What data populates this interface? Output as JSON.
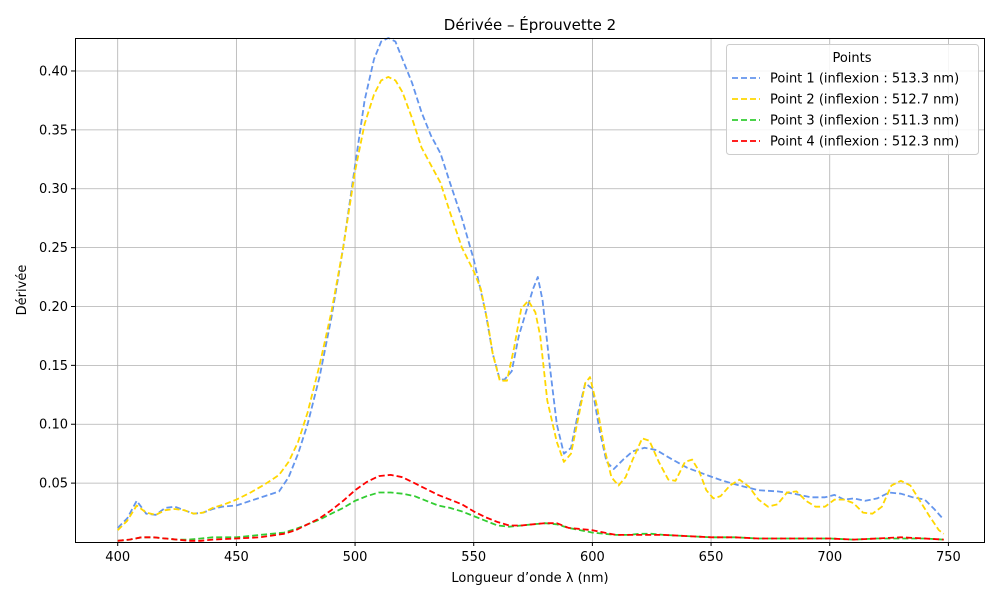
{
  "chart_data": {
    "type": "line",
    "title": "Dérivée – Éprouvette 2",
    "xlabel": "Longueur d’onde λ (nm)",
    "ylabel": "Dérivée",
    "xlim": [
      382,
      765
    ],
    "ylim": [
      0.0,
      0.428
    ],
    "x_ticks": [
      400,
      450,
      500,
      550,
      600,
      650,
      700,
      750
    ],
    "y_ticks": [
      0.05,
      0.1,
      0.15,
      0.2,
      0.25,
      0.3,
      0.35,
      0.4
    ],
    "y_tick_labels": [
      "0.05",
      "0.10",
      "0.15",
      "0.20",
      "0.25",
      "0.30",
      "0.35",
      "0.40"
    ],
    "grid": true,
    "legend": {
      "title": "Points",
      "placement": "top-right",
      "entries": [
        "Point 1 (inflexion : 513.3 nm)",
        "Point 2 (inflexion : 512.7 nm)",
        "Point 3 (inflexion : 511.3 nm)",
        "Point 4 (inflexion : 512.3 nm)"
      ]
    },
    "series": [
      {
        "name": "Point 1 (inflexion : 513.3 nm)",
        "color": "#6495ED",
        "points": [
          [
            400,
            0.012
          ],
          [
            404,
            0.02
          ],
          [
            408,
            0.035
          ],
          [
            412,
            0.024
          ],
          [
            416,
            0.023
          ],
          [
            420,
            0.029
          ],
          [
            424,
            0.03
          ],
          [
            428,
            0.027
          ],
          [
            432,
            0.024
          ],
          [
            436,
            0.025
          ],
          [
            440,
            0.028
          ],
          [
            444,
            0.03
          ],
          [
            450,
            0.031
          ],
          [
            456,
            0.035
          ],
          [
            462,
            0.039
          ],
          [
            468,
            0.043
          ],
          [
            472,
            0.055
          ],
          [
            476,
            0.075
          ],
          [
            480,
            0.1
          ],
          [
            485,
            0.14
          ],
          [
            490,
            0.19
          ],
          [
            495,
            0.25
          ],
          [
            500,
            0.32
          ],
          [
            504,
            0.375
          ],
          [
            508,
            0.41
          ],
          [
            511,
            0.425
          ],
          [
            514,
            0.428
          ],
          [
            517,
            0.425
          ],
          [
            520,
            0.41
          ],
          [
            524,
            0.39
          ],
          [
            528,
            0.365
          ],
          [
            532,
            0.345
          ],
          [
            536,
            0.33
          ],
          [
            540,
            0.305
          ],
          [
            545,
            0.275
          ],
          [
            550,
            0.24
          ],
          [
            555,
            0.195
          ],
          [
            558,
            0.16
          ],
          [
            561,
            0.138
          ],
          [
            563,
            0.138
          ],
          [
            566,
            0.145
          ],
          [
            569,
            0.175
          ],
          [
            572,
            0.195
          ],
          [
            575,
            0.215
          ],
          [
            577,
            0.225
          ],
          [
            579,
            0.205
          ],
          [
            582,
            0.15
          ],
          [
            585,
            0.1
          ],
          [
            588,
            0.075
          ],
          [
            591,
            0.08
          ],
          [
            594,
            0.11
          ],
          [
            597,
            0.135
          ],
          [
            600,
            0.13
          ],
          [
            603,
            0.095
          ],
          [
            606,
            0.068
          ],
          [
            609,
            0.062
          ],
          [
            613,
            0.07
          ],
          [
            617,
            0.077
          ],
          [
            622,
            0.08
          ],
          [
            627,
            0.078
          ],
          [
            632,
            0.072
          ],
          [
            640,
            0.063
          ],
          [
            648,
            0.057
          ],
          [
            655,
            0.052
          ],
          [
            662,
            0.048
          ],
          [
            670,
            0.044
          ],
          [
            678,
            0.043
          ],
          [
            685,
            0.041
          ],
          [
            692,
            0.038
          ],
          [
            698,
            0.038
          ],
          [
            702,
            0.04
          ],
          [
            706,
            0.036
          ],
          [
            710,
            0.037
          ],
          [
            715,
            0.035
          ],
          [
            720,
            0.037
          ],
          [
            725,
            0.042
          ],
          [
            730,
            0.041
          ],
          [
            735,
            0.038
          ],
          [
            740,
            0.036
          ],
          [
            744,
            0.028
          ],
          [
            748,
            0.019
          ]
        ]
      },
      {
        "name": "Point 2 (inflexion : 512.7 nm)",
        "color": "#FFD700",
        "points": [
          [
            400,
            0.01
          ],
          [
            404,
            0.018
          ],
          [
            408,
            0.031
          ],
          [
            412,
            0.025
          ],
          [
            416,
            0.023
          ],
          [
            420,
            0.027
          ],
          [
            424,
            0.028
          ],
          [
            428,
            0.027
          ],
          [
            432,
            0.024
          ],
          [
            436,
            0.025
          ],
          [
            440,
            0.029
          ],
          [
            445,
            0.032
          ],
          [
            450,
            0.036
          ],
          [
            456,
            0.042
          ],
          [
            462,
            0.049
          ],
          [
            468,
            0.057
          ],
          [
            472,
            0.068
          ],
          [
            476,
            0.085
          ],
          [
            480,
            0.11
          ],
          [
            485,
            0.15
          ],
          [
            490,
            0.195
          ],
          [
            495,
            0.25
          ],
          [
            500,
            0.315
          ],
          [
            504,
            0.355
          ],
          [
            508,
            0.38
          ],
          [
            511,
            0.392
          ],
          [
            514,
            0.395
          ],
          [
            517,
            0.392
          ],
          [
            520,
            0.382
          ],
          [
            524,
            0.36
          ],
          [
            528,
            0.335
          ],
          [
            532,
            0.32
          ],
          [
            536,
            0.305
          ],
          [
            540,
            0.28
          ],
          [
            545,
            0.25
          ],
          [
            550,
            0.23
          ],
          [
            553,
            0.215
          ],
          [
            556,
            0.185
          ],
          [
            558,
            0.16
          ],
          [
            561,
            0.137
          ],
          [
            564,
            0.137
          ],
          [
            567,
            0.165
          ],
          [
            570,
            0.198
          ],
          [
            573,
            0.205
          ],
          [
            576,
            0.195
          ],
          [
            578,
            0.175
          ],
          [
            581,
            0.12
          ],
          [
            585,
            0.085
          ],
          [
            588,
            0.068
          ],
          [
            591,
            0.075
          ],
          [
            594,
            0.105
          ],
          [
            597,
            0.135
          ],
          [
            599,
            0.14
          ],
          [
            602,
            0.115
          ],
          [
            605,
            0.08
          ],
          [
            608,
            0.055
          ],
          [
            611,
            0.048
          ],
          [
            614,
            0.055
          ],
          [
            617,
            0.07
          ],
          [
            621,
            0.088
          ],
          [
            624,
            0.086
          ],
          [
            628,
            0.068
          ],
          [
            632,
            0.053
          ],
          [
            635,
            0.052
          ],
          [
            639,
            0.068
          ],
          [
            642,
            0.07
          ],
          [
            645,
            0.06
          ],
          [
            648,
            0.044
          ],
          [
            651,
            0.037
          ],
          [
            654,
            0.039
          ],
          [
            658,
            0.048
          ],
          [
            662,
            0.053
          ],
          [
            666,
            0.047
          ],
          [
            670,
            0.036
          ],
          [
            674,
            0.03
          ],
          [
            678,
            0.032
          ],
          [
            682,
            0.042
          ],
          [
            686,
            0.043
          ],
          [
            690,
            0.035
          ],
          [
            694,
            0.03
          ],
          [
            698,
            0.03
          ],
          [
            702,
            0.036
          ],
          [
            706,
            0.036
          ],
          [
            710,
            0.033
          ],
          [
            714,
            0.025
          ],
          [
            718,
            0.024
          ],
          [
            722,
            0.03
          ],
          [
            726,
            0.048
          ],
          [
            730,
            0.052
          ],
          [
            734,
            0.048
          ],
          [
            738,
            0.035
          ],
          [
            742,
            0.022
          ],
          [
            746,
            0.01
          ],
          [
            748,
            0.007
          ]
        ]
      },
      {
        "name": "Point 3 (inflexion : 511.3 nm)",
        "color": "#32CD32",
        "points": [
          [
            400,
            0.001
          ],
          [
            405,
            0.002
          ],
          [
            410,
            0.004
          ],
          [
            415,
            0.004
          ],
          [
            420,
            0.003
          ],
          [
            425,
            0.002
          ],
          [
            430,
            0.002
          ],
          [
            435,
            0.003
          ],
          [
            440,
            0.004
          ],
          [
            450,
            0.004
          ],
          [
            460,
            0.006
          ],
          [
            470,
            0.008
          ],
          [
            475,
            0.011
          ],
          [
            480,
            0.015
          ],
          [
            485,
            0.019
          ],
          [
            490,
            0.024
          ],
          [
            495,
            0.029
          ],
          [
            500,
            0.035
          ],
          [
            505,
            0.039
          ],
          [
            510,
            0.042
          ],
          [
            515,
            0.042
          ],
          [
            520,
            0.041
          ],
          [
            525,
            0.039
          ],
          [
            530,
            0.035
          ],
          [
            535,
            0.031
          ],
          [
            540,
            0.029
          ],
          [
            545,
            0.026
          ],
          [
            550,
            0.022
          ],
          [
            555,
            0.018
          ],
          [
            560,
            0.014
          ],
          [
            565,
            0.013
          ],
          [
            570,
            0.014
          ],
          [
            575,
            0.015
          ],
          [
            580,
            0.016
          ],
          [
            585,
            0.015
          ],
          [
            590,
            0.012
          ],
          [
            595,
            0.01
          ],
          [
            600,
            0.008
          ],
          [
            605,
            0.007
          ],
          [
            610,
            0.006
          ],
          [
            615,
            0.006
          ],
          [
            620,
            0.007
          ],
          [
            625,
            0.007
          ],
          [
            630,
            0.006
          ],
          [
            640,
            0.005
          ],
          [
            650,
            0.004
          ],
          [
            660,
            0.004
          ],
          [
            670,
            0.003
          ],
          [
            680,
            0.003
          ],
          [
            690,
            0.003
          ],
          [
            700,
            0.003
          ],
          [
            710,
            0.002
          ],
          [
            720,
            0.003
          ],
          [
            730,
            0.003
          ],
          [
            740,
            0.003
          ],
          [
            748,
            0.002
          ]
        ]
      },
      {
        "name": "Point 4 (inflexion : 512.3 nm)",
        "color": "#FF0000",
        "points": [
          [
            400,
            0.001
          ],
          [
            405,
            0.002
          ],
          [
            410,
            0.004
          ],
          [
            415,
            0.004
          ],
          [
            420,
            0.003
          ],
          [
            425,
            0.002
          ],
          [
            430,
            0.001
          ],
          [
            435,
            0.001
          ],
          [
            440,
            0.002
          ],
          [
            450,
            0.003
          ],
          [
            460,
            0.004
          ],
          [
            470,
            0.007
          ],
          [
            475,
            0.01
          ],
          [
            480,
            0.015
          ],
          [
            485,
            0.02
          ],
          [
            490,
            0.027
          ],
          [
            495,
            0.035
          ],
          [
            500,
            0.044
          ],
          [
            505,
            0.051
          ],
          [
            510,
            0.056
          ],
          [
            515,
            0.057
          ],
          [
            520,
            0.055
          ],
          [
            525,
            0.05
          ],
          [
            530,
            0.045
          ],
          [
            535,
            0.04
          ],
          [
            540,
            0.036
          ],
          [
            545,
            0.032
          ],
          [
            550,
            0.026
          ],
          [
            555,
            0.021
          ],
          [
            560,
            0.017
          ],
          [
            565,
            0.014
          ],
          [
            570,
            0.014
          ],
          [
            575,
            0.015
          ],
          [
            580,
            0.016
          ],
          [
            585,
            0.016
          ],
          [
            590,
            0.012
          ],
          [
            595,
            0.011
          ],
          [
            600,
            0.01
          ],
          [
            605,
            0.008
          ],
          [
            610,
            0.006
          ],
          [
            615,
            0.006
          ],
          [
            620,
            0.006
          ],
          [
            625,
            0.006
          ],
          [
            630,
            0.006
          ],
          [
            640,
            0.005
          ],
          [
            650,
            0.004
          ],
          [
            660,
            0.004
          ],
          [
            670,
            0.003
          ],
          [
            680,
            0.003
          ],
          [
            690,
            0.003
          ],
          [
            700,
            0.003
          ],
          [
            710,
            0.002
          ],
          [
            720,
            0.003
          ],
          [
            730,
            0.004
          ],
          [
            740,
            0.003
          ],
          [
            748,
            0.002
          ]
        ]
      }
    ]
  }
}
